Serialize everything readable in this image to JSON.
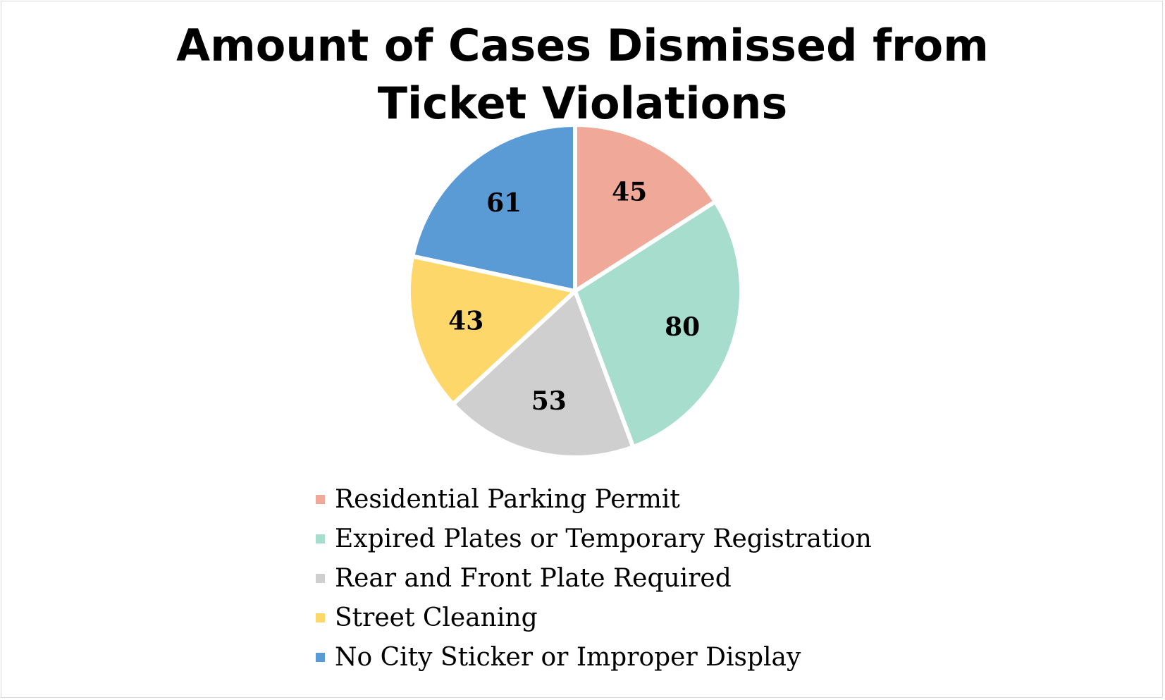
{
  "chart_data": {
    "type": "pie",
    "title_lines": [
      "Amount of Cases Dismissed from",
      "Ticket Violations"
    ],
    "categories": [
      "Residential Parking Permit",
      "Expired Plates or Temporary Registration",
      "Rear and Front Plate Required",
      "Street Cleaning",
      "No City Sticker or Improper Display"
    ],
    "values": [
      45,
      80,
      53,
      43,
      61
    ],
    "colors": [
      "#f0a899",
      "#a7ddcd",
      "#d0cfd0",
      "#fed76b",
      "#5b9bd5"
    ],
    "data_labels": [
      "45",
      "80",
      "53",
      "43",
      "61"
    ],
    "legend_position": "bottom",
    "start_angle": "12 o'clock",
    "direction": "clockwise"
  }
}
